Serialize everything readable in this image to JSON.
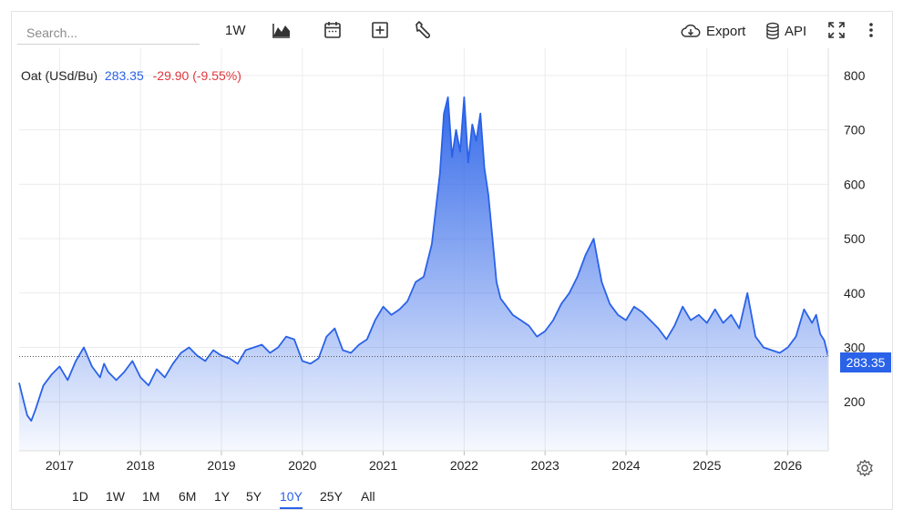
{
  "toolbar": {
    "search_placeholder": "Search...",
    "period_label": "1W",
    "export_label": "Export",
    "api_label": "API"
  },
  "legend": {
    "name": "Oat (USd/Bu)",
    "last": "283.35",
    "change": "-29.90 (-9.55%)"
  },
  "price_tag": "283.35",
  "ranges": [
    {
      "label": "1D",
      "active": false
    },
    {
      "label": "1W",
      "active": false
    },
    {
      "label": "1M",
      "active": false
    },
    {
      "label": "6M",
      "active": false
    },
    {
      "label": "1Y",
      "active": false
    },
    {
      "label": "5Y",
      "active": false
    },
    {
      "label": "10Y",
      "active": true
    },
    {
      "label": "25Y",
      "active": false
    },
    {
      "label": "All",
      "active": false
    }
  ],
  "colors": {
    "line": "#2a62e8",
    "negative": "#e0383e",
    "grid": "#ececec"
  },
  "chart_data": {
    "type": "area",
    "y_ticks": [
      200,
      300,
      400,
      500,
      600,
      700,
      800
    ],
    "x_ticks": [
      "2017",
      "2018",
      "2019",
      "2020",
      "2021",
      "2022",
      "2023",
      "2024",
      "2025",
      "2026"
    ],
    "xlim": [
      2016.5,
      2026.5
    ],
    "ylim": [
      110,
      850
    ],
    "grid": true,
    "reference_line": 283.35,
    "series": [
      {
        "x": [
          2016.5,
          2016.55,
          2016.6,
          2016.65,
          2016.7,
          2016.8,
          2016.9,
          2017.0,
          2017.1,
          2017.2,
          2017.3,
          2017.4,
          2017.5,
          2017.55,
          2017.6,
          2017.7,
          2017.8,
          2017.9,
          2018.0,
          2018.1,
          2018.2,
          2018.3,
          2018.4,
          2018.5,
          2018.6,
          2018.7,
          2018.8,
          2018.9,
          2019.0,
          2019.1,
          2019.2,
          2019.3,
          2019.4,
          2019.5,
          2019.6,
          2019.7,
          2019.8,
          2019.9,
          2020.0,
          2020.1,
          2020.2,
          2020.3,
          2020.4,
          2020.5,
          2020.6,
          2020.7,
          2020.8,
          2020.9,
          2021.0,
          2021.1,
          2021.2,
          2021.3,
          2021.4,
          2021.5,
          2021.6,
          2021.7,
          2021.75,
          2021.8,
          2021.85,
          2021.9,
          2021.95,
          2022.0,
          2022.05,
          2022.1,
          2022.15,
          2022.2,
          2022.25,
          2022.3,
          2022.35,
          2022.4,
          2022.45,
          2022.5,
          2022.6,
          2022.7,
          2022.8,
          2022.9,
          2023.0,
          2023.1,
          2023.2,
          2023.3,
          2023.4,
          2023.5,
          2023.6,
          2023.65,
          2023.7,
          2023.8,
          2023.9,
          2024.0,
          2024.1,
          2024.2,
          2024.3,
          2024.4,
          2024.5,
          2024.6,
          2024.7,
          2024.8,
          2024.9,
          2025.0,
          2025.1,
          2025.2,
          2025.3,
          2025.4,
          2025.5,
          2025.6,
          2025.7,
          2025.8,
          2025.9,
          2026.0,
          2026.1,
          2026.2,
          2026.3,
          2026.35,
          2026.4,
          2026.45,
          2026.5
        ],
        "y": [
          235,
          205,
          175,
          165,
          185,
          230,
          250,
          265,
          240,
          275,
          300,
          265,
          245,
          270,
          255,
          240,
          255,
          275,
          245,
          230,
          260,
          245,
          270,
          290,
          300,
          285,
          275,
          295,
          285,
          280,
          270,
          295,
          300,
          305,
          290,
          300,
          320,
          315,
          275,
          270,
          280,
          320,
          335,
          295,
          290,
          305,
          315,
          350,
          375,
          360,
          370,
          385,
          420,
          430,
          490,
          620,
          730,
          760,
          650,
          700,
          660,
          760,
          640,
          710,
          680,
          730,
          630,
          580,
          500,
          420,
          390,
          380,
          360,
          350,
          340,
          320,
          330,
          350,
          380,
          400,
          430,
          470,
          500,
          460,
          420,
          380,
          360,
          350,
          375,
          365,
          350,
          335,
          315,
          340,
          375,
          350,
          360,
          345,
          370,
          345,
          360,
          335,
          400,
          320,
          300,
          295,
          290,
          300,
          320,
          370,
          345,
          360,
          325,
          313,
          283
        ]
      }
    ]
  }
}
